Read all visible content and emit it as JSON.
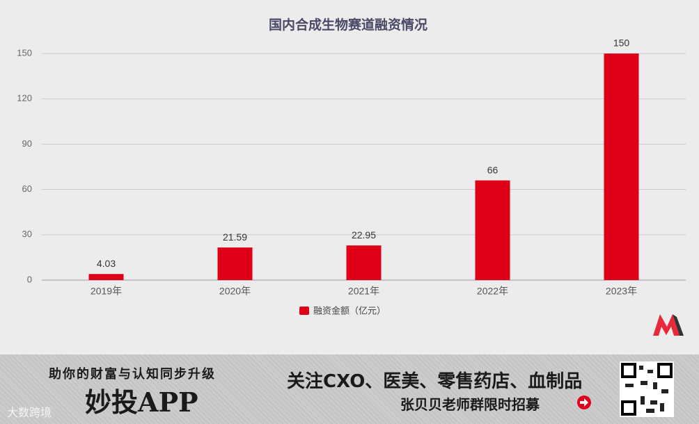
{
  "chart_data": {
    "type": "bar",
    "title": "国内合成生物赛道融资情况",
    "categories": [
      "2019年",
      "2020年",
      "2021年",
      "2022年",
      "2023年"
    ],
    "series": [
      {
        "name": "融资金额（亿元）",
        "color": "#df0017",
        "values": [
          4.03,
          21.59,
          22.95,
          66,
          150
        ]
      }
    ],
    "ylim": [
      0,
      150
    ],
    "yticks": [
      0,
      30,
      60,
      90,
      120,
      150
    ],
    "grid": true,
    "legend": "bottom"
  },
  "banner": {
    "slogan": "助你的财富与认知同步升级",
    "app": "妙投APP",
    "headline": "关注CXO、医美、零售药店、血制品",
    "subline": "张贝贝老师群限时招募",
    "watermark": "大数跨境"
  }
}
